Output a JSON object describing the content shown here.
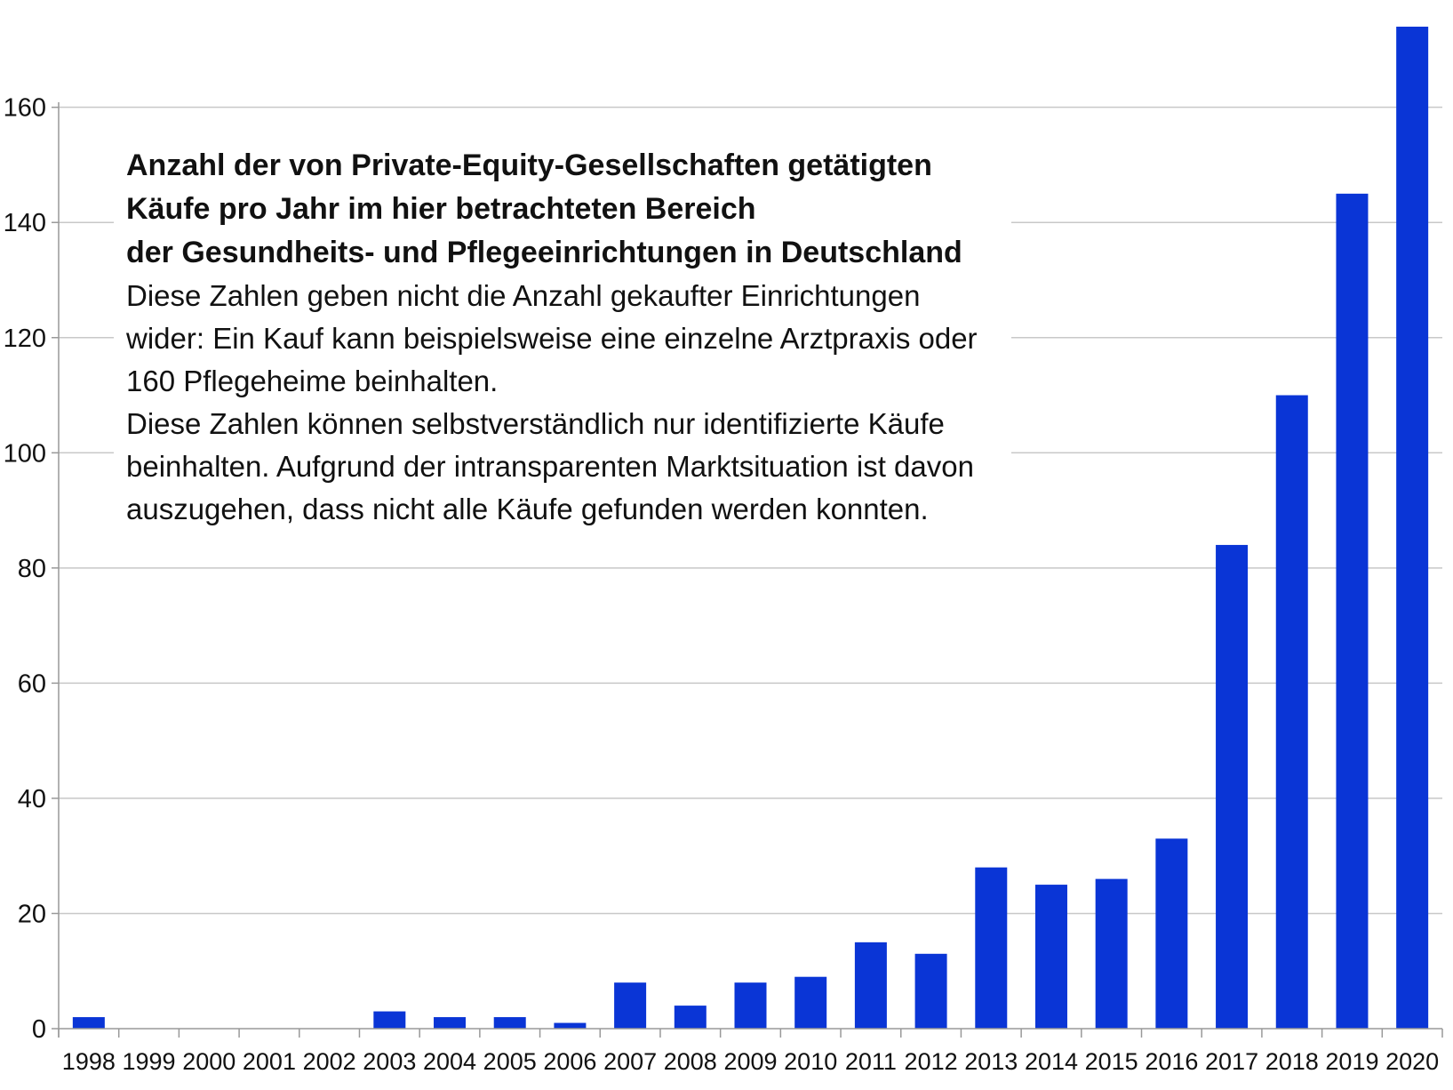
{
  "chart_data": {
    "type": "bar",
    "categories": [
      "1998",
      "1999",
      "2000",
      "2001",
      "2002",
      "2003",
      "2004",
      "2005",
      "2006",
      "2007",
      "2008",
      "2009",
      "2010",
      "2011",
      "2012",
      "2013",
      "2014",
      "2015",
      "2016",
      "2017",
      "2018",
      "2019",
      "2020"
    ],
    "values": [
      2,
      0,
      0,
      0,
      0,
      3,
      2,
      2,
      1,
      8,
      4,
      8,
      9,
      15,
      13,
      28,
      25,
      26,
      33,
      84,
      110,
      145,
      174
    ],
    "title": "",
    "xlabel": "",
    "ylabel": "",
    "ylim": [
      0,
      174
    ],
    "yticks": [
      0,
      20,
      40,
      60,
      80,
      100,
      120,
      140,
      160
    ],
    "grid": true,
    "bar_color": "#0a35d6",
    "grid_color": "#c8c8c8",
    "axis_color": "#999999"
  },
  "annotation": {
    "title_lines": [
      "Anzahl der von Private-Equity-Gesellschaften getätigten",
      "Käufe pro Jahr im hier betrachteten Bereich",
      "der Gesundheits- und Pflegeeinrichtungen in Deutschland"
    ],
    "paragraph1_lines": [
      "Diese Zahlen geben nicht die Anzahl gekaufter Einrichtungen",
      "wider: Ein Kauf kann beispielsweise eine einzelne Arztpraxis oder",
      "160 Pflegeheime beinhalten."
    ],
    "paragraph2_lines": [
      "Diese Zahlen können selbstverständlich nur identifizierte Käufe",
      "beinhalten. Aufgrund der intransparenten Marktsituation ist davon",
      "auszugehen, dass nicht alle Käufe gefunden werden konnten."
    ]
  }
}
